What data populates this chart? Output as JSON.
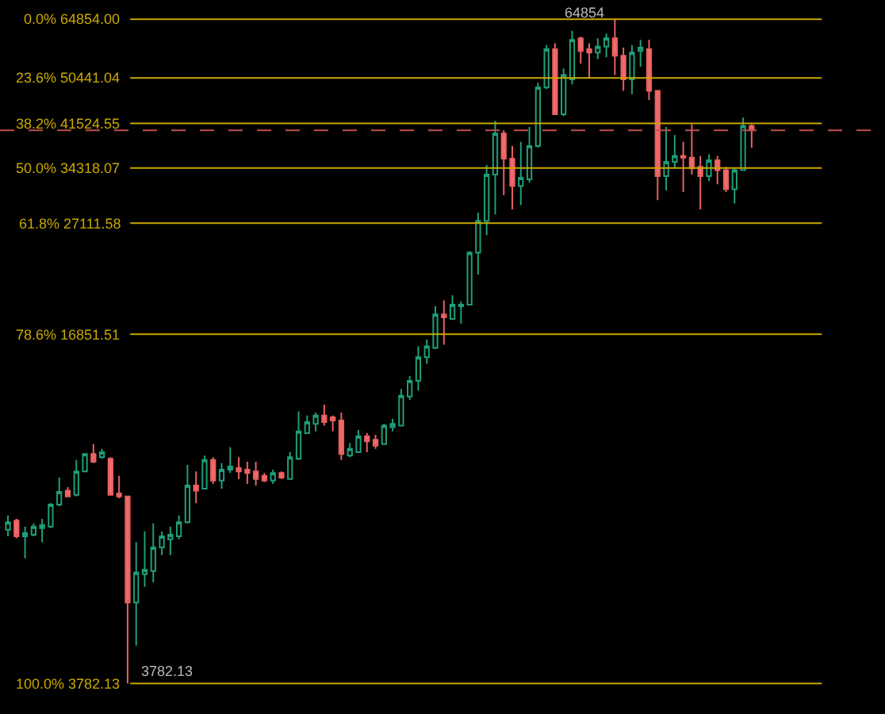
{
  "chart_data": {
    "type": "candlestick",
    "log": true,
    "categories": [
      null,
      null,
      null,
      null,
      null,
      null,
      null,
      null,
      null,
      null,
      null,
      null,
      null,
      null,
      null,
      null,
      null,
      null,
      null,
      null,
      null,
      null,
      null,
      null,
      null,
      null,
      null,
      null,
      null,
      null,
      null,
      null,
      null,
      null,
      null,
      null,
      null,
      null,
      null,
      null,
      null,
      null,
      null,
      null,
      null,
      null,
      null,
      null,
      null,
      null,
      null,
      null,
      null,
      null,
      null,
      null,
      null,
      null,
      null,
      null,
      null,
      null,
      null,
      null,
      null,
      null,
      null,
      null,
      null,
      null,
      null,
      null,
      null,
      null,
      null,
      null,
      null,
      null,
      null,
      null,
      null,
      null,
      null,
      null,
      null,
      null,
      null,
      null
    ],
    "ylim": [
      3320,
      70400
    ],
    "ohlc": [
      [
        7300,
        7760,
        7100,
        7540
      ],
      [
        7590,
        7650,
        7040,
        7100
      ],
      [
        7100,
        7400,
        6460,
        7200
      ],
      [
        7150,
        7500,
        7100,
        7400
      ],
      [
        7350,
        7650,
        6920,
        7450
      ],
      [
        7400,
        8180,
        7350,
        8130
      ],
      [
        8130,
        9130,
        8070,
        8590
      ],
      [
        8630,
        8760,
        8420,
        8420
      ],
      [
        8480,
        9840,
        8420,
        9370
      ],
      [
        9370,
        10100,
        9370,
        10100
      ],
      [
        10100,
        10530,
        9710,
        9770
      ],
      [
        9960,
        10320,
        9890,
        10170
      ],
      [
        9890,
        9950,
        8480,
        8480
      ],
      [
        8530,
        9200,
        8360,
        8420
      ],
      [
        8420,
        8420,
        3782.13,
        5350
      ],
      [
        5350,
        6920,
        4450,
        6080
      ],
      [
        6040,
        7250,
        5720,
        6150
      ],
      [
        6120,
        7500,
        5830,
        6770
      ],
      [
        6770,
        7250,
        6550,
        7100
      ],
      [
        7010,
        7400,
        6550,
        7150
      ],
      [
        7100,
        7760,
        7010,
        7540
      ],
      [
        7540,
        9640,
        7500,
        8820
      ],
      [
        8820,
        9370,
        8180,
        8630
      ],
      [
        8700,
        10030,
        8700,
        9840
      ],
      [
        9840,
        9960,
        8880,
        9010
      ],
      [
        9010,
        9710,
        8700,
        9440
      ],
      [
        9440,
        10390,
        9310,
        9570
      ],
      [
        9510,
        9960,
        9070,
        9370
      ],
      [
        9440,
        9770,
        8880,
        9310
      ],
      [
        9370,
        9770,
        8820,
        9070
      ],
      [
        9200,
        9310,
        8950,
        9010
      ],
      [
        9010,
        9440,
        8880,
        9310
      ],
      [
        9310,
        9370,
        9070,
        9130
      ],
      [
        9070,
        10170,
        9070,
        9960
      ],
      [
        9890,
        12120,
        9840,
        11120
      ],
      [
        11040,
        11900,
        11040,
        11570
      ],
      [
        11490,
        12060,
        11120,
        11900
      ],
      [
        11900,
        12470,
        11400,
        11570
      ],
      [
        11810,
        11900,
        11120,
        11650
      ],
      [
        11650,
        12060,
        9840,
        10100
      ],
      [
        10030,
        10580,
        9960,
        10320
      ],
      [
        10170,
        11190,
        10170,
        10890
      ],
      [
        10890,
        11040,
        10170,
        10660
      ],
      [
        10730,
        10960,
        10320,
        10460
      ],
      [
        10530,
        11490,
        10530,
        11400
      ],
      [
        11320,
        11730,
        11120,
        11490
      ],
      [
        11400,
        13340,
        11400,
        12960
      ],
      [
        12910,
        14080,
        12730,
        13810
      ],
      [
        13810,
        16010,
        13250,
        15280
      ],
      [
        15280,
        16470,
        14850,
        16010
      ],
      [
        15890,
        18990,
        15820,
        18340
      ],
      [
        18340,
        19480,
        16120,
        18120
      ],
      [
        18000,
        19900,
        18000,
        19130
      ],
      [
        18990,
        19390,
        17630,
        19130
      ],
      [
        19130,
        24060,
        19130,
        23880
      ],
      [
        23880,
        28340,
        21760,
        27350
      ],
      [
        27350,
        34740,
        25740,
        33370
      ],
      [
        33370,
        41980,
        28140,
        39780
      ],
      [
        39780,
        40330,
        30540,
        35710
      ],
      [
        35710,
        37690,
        28730,
        31780
      ],
      [
        31780,
        38390,
        29270,
        32920
      ],
      [
        32690,
        40890,
        32240,
        37690
      ],
      [
        37690,
        49440,
        37430,
        48420
      ],
      [
        48420,
        58090,
        48080,
        57020
      ],
      [
        57020,
        58510,
        43170,
        43170
      ],
      [
        43170,
        52540,
        42870,
        51080
      ],
      [
        50120,
        61750,
        49100,
        59340
      ],
      [
        59760,
        60180,
        53630,
        56630
      ],
      [
        57020,
        58510,
        50350,
        56240
      ],
      [
        56240,
        59760,
        54680,
        57670
      ],
      [
        57670,
        61010,
        55070,
        59760
      ],
      [
        59760,
        64854,
        51080,
        55460
      ],
      [
        55460,
        57410,
        47730,
        50120
      ],
      [
        50120,
        58090,
        47050,
        56240
      ],
      [
        56630,
        59340,
        52900,
        57410
      ],
      [
        57020,
        59340,
        45870,
        47730
      ],
      [
        47730,
        47730,
        29910,
        33140
      ],
      [
        33140,
        40890,
        31180,
        35220
      ],
      [
        35220,
        39500,
        34250,
        36130
      ],
      [
        36130,
        38390,
        30970,
        35870
      ],
      [
        35870,
        41380,
        33370,
        34250
      ],
      [
        34500,
        36130,
        28730,
        33140
      ],
      [
        33140,
        36390,
        32460,
        35470
      ],
      [
        35470,
        36130,
        32010,
        34010
      ],
      [
        34010,
        34500,
        30970,
        31330
      ],
      [
        31330,
        34250,
        29480,
        34010
      ],
      [
        34010,
        42570,
        34010,
        41080
      ],
      [
        41080,
        41380,
        37430,
        40330
      ]
    ],
    "ref_lines": [
      {
        "axis": "y",
        "value": 64854,
        "label": "0.0% 64854.00",
        "color": "#c9a800"
      },
      {
        "axis": "y",
        "value": 50441.04,
        "label": "23.6% 50441.04",
        "color": "#c9a800"
      },
      {
        "axis": "y",
        "value": 41524.55,
        "label": "38.2% 41524.55",
        "color": "#c9a800"
      },
      {
        "axis": "y",
        "value": 34318.07,
        "label": "50.0% 34318.07",
        "color": "#c9a800"
      },
      {
        "axis": "y",
        "value": 27111.58,
        "label": "61.8% 27111.58",
        "color": "#c9a800"
      },
      {
        "axis": "y",
        "value": 16851.51,
        "label": "78.6% 16851.51",
        "color": "#c9a800"
      },
      {
        "axis": "y",
        "value": 3782.13,
        "label": "100.0% 3782.13",
        "color": "#c9a800"
      },
      {
        "axis": "y",
        "value": 40330,
        "color": "#c0504d",
        "line_style": "dashed"
      }
    ],
    "annotations": [
      {
        "text": "64854",
        "y": 64854
      },
      {
        "text": "3782.13",
        "y": 3782.13
      }
    ]
  }
}
